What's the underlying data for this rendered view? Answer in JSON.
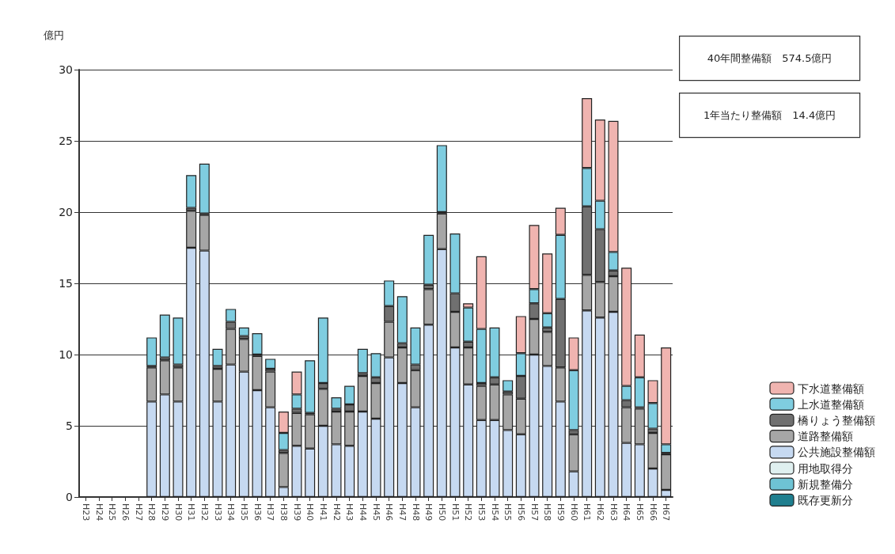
{
  "chart_data": {
    "type": "bar",
    "stacked": true,
    "ylabel": "億円",
    "grid": "y",
    "legend": "bottom right",
    "annotations": [
      "40年間整備額　574.5億円",
      "1年当たり整備額　14.4億円"
    ],
    "categories": [
      "H23",
      "H24",
      "H25",
      "H26",
      "H27",
      "H28",
      "H29",
      "H30",
      "H31",
      "H32",
      "H33",
      "H34",
      "H35",
      "H36",
      "H37",
      "H38",
      "H39",
      "H40",
      "H41",
      "H42",
      "H43",
      "H44",
      "H45",
      "H46",
      "H47",
      "H48",
      "H49",
      "H50",
      "H51",
      "H52",
      "H53",
      "H54",
      "H55",
      "H56",
      "H57",
      "H58",
      "H59",
      "H60",
      "H61",
      "H62",
      "H63",
      "H64",
      "H65",
      "H66",
      "H67"
    ],
    "ylim": [
      0,
      30
    ],
    "yticks": [
      0,
      5,
      10,
      15,
      20,
      25,
      30
    ],
    "series": [
      {
        "name": "既存更新分",
        "color": "#1f7f8f",
        "values": [
          0,
          0,
          0,
          0,
          0,
          0,
          0,
          0,
          0,
          0,
          0,
          0,
          0,
          0,
          0,
          0,
          0,
          0,
          0,
          0,
          0,
          0,
          0,
          0,
          0,
          0,
          0,
          0,
          0,
          0,
          0,
          0,
          0,
          0,
          0,
          0,
          0,
          0,
          0,
          0,
          0,
          0,
          0,
          0,
          0
        ]
      },
      {
        "name": "新規整備分",
        "color": "#6ec3d4",
        "values": [
          0,
          0,
          0,
          0,
          0,
          0,
          0,
          0,
          0,
          0,
          0,
          0,
          0,
          0,
          0,
          0,
          0,
          0,
          0,
          0,
          0,
          0,
          0,
          0,
          0,
          0,
          0,
          0,
          0,
          0,
          0,
          0,
          0,
          0,
          0,
          0,
          0,
          0,
          0,
          0,
          0,
          0,
          0,
          0,
          0
        ]
      },
      {
        "name": "用地取得分",
        "color": "#e0f0f0",
        "values": [
          0,
          0,
          0,
          0,
          0,
          0,
          0,
          0,
          0,
          0,
          0,
          0,
          0,
          0,
          0,
          0,
          0,
          0,
          0,
          0,
          0,
          0,
          0,
          0,
          0,
          0,
          0,
          0,
          0,
          0,
          0,
          0,
          0,
          0,
          0,
          0,
          0,
          0,
          0,
          0,
          0,
          0,
          0,
          0,
          0
        ]
      },
      {
        "name": "公共施設整備額",
        "color": "#c6d9f1",
        "values": [
          0,
          0,
          0,
          0,
          0,
          6.7,
          7.2,
          6.7,
          17.5,
          17.3,
          6.7,
          9.3,
          8.8,
          7.5,
          6.3,
          0.7,
          3.6,
          3.4,
          5.0,
          3.7,
          3.6,
          6.0,
          5.5,
          9.8,
          8.0,
          6.3,
          12.1,
          17.4,
          10.5,
          7.9,
          5.4,
          5.4,
          4.7,
          4.4,
          10.0,
          9.2,
          6.7,
          1.8,
          13.1,
          12.6,
          13.0,
          3.8,
          3.7,
          2.0,
          0.5
        ]
      },
      {
        "name": "道路整備額",
        "color": "#a6a6a6",
        "values": [
          0,
          0,
          0,
          0,
          0,
          2.4,
          2.4,
          2.4,
          2.6,
          2.5,
          2.3,
          2.5,
          2.3,
          2.4,
          2.5,
          2.4,
          2.3,
          2.4,
          2.6,
          2.3,
          2.4,
          2.5,
          2.5,
          2.5,
          2.5,
          2.6,
          2.5,
          2.5,
          2.5,
          2.6,
          2.4,
          2.5,
          2.5,
          2.5,
          2.5,
          2.4,
          2.4,
          2.6,
          2.5,
          2.5,
          2.5,
          2.5,
          2.5,
          2.5,
          2.5
        ]
      },
      {
        "name": "橋りょう整備額",
        "color": "#707070",
        "values": [
          0,
          0,
          0,
          0,
          0,
          0.1,
          0.2,
          0.2,
          0.2,
          0.1,
          0.2,
          0.5,
          0.2,
          0.1,
          0.2,
          0.2,
          0.3,
          0.1,
          0.4,
          0.2,
          0.5,
          0.2,
          0.4,
          1.1,
          0.3,
          0.4,
          0.3,
          0.1,
          1.3,
          0.4,
          0.2,
          0.5,
          0.2,
          1.6,
          1.1,
          0.3,
          4.8,
          0.3,
          4.8,
          3.7,
          0.4,
          0.5,
          0.1,
          0.3,
          0.1
        ]
      },
      {
        "name": "上水道整備額",
        "color": "#7fcde0",
        "values": [
          0,
          0,
          0,
          0,
          0,
          2.0,
          3.0,
          3.3,
          2.3,
          3.5,
          1.2,
          0.9,
          0.6,
          1.5,
          0.7,
          1.2,
          1.0,
          3.7,
          4.6,
          0.8,
          1.3,
          1.7,
          1.7,
          1.8,
          3.3,
          2.6,
          3.5,
          4.7,
          4.2,
          2.4,
          3.8,
          3.5,
          0.8,
          1.6,
          1.0,
          1.0,
          4.5,
          4.2,
          2.7,
          2.0,
          1.3,
          1.0,
          2.1,
          1.8,
          0.6
        ]
      },
      {
        "name": "下水道整備額",
        "color": "#f0b4b0",
        "values": [
          0,
          0,
          0,
          0,
          0,
          0,
          0,
          0,
          0,
          0,
          0,
          0,
          0,
          0,
          0,
          1.5,
          1.6,
          0,
          0,
          0,
          0,
          0,
          0,
          0,
          0,
          0,
          0,
          0,
          0,
          0.3,
          5.1,
          0,
          0,
          2.6,
          4.5,
          4.2,
          1.9,
          2.3,
          4.9,
          5.7,
          9.2,
          8.3,
          3.0,
          1.6,
          6.8
        ]
      }
    ]
  }
}
